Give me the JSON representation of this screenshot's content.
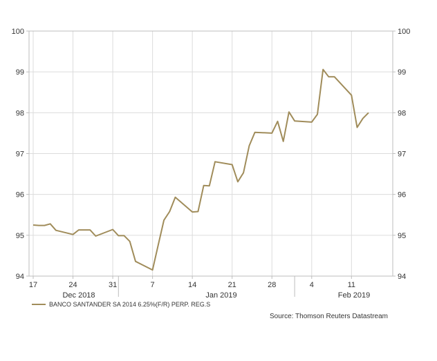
{
  "chart_data": {
    "type": "line",
    "title": "",
    "xlabel": "",
    "ylabel": "",
    "ylim": [
      94,
      100
    ],
    "y_ticks": [
      94,
      95,
      96,
      97,
      98,
      99,
      100
    ],
    "y_axis_sides": "left and right",
    "grid": true,
    "legend_placement": "bottom-left",
    "x_tick_labels": [
      "17",
      "24",
      "31",
      "7",
      "14",
      "21",
      "28",
      "4",
      "11"
    ],
    "month_labels": [
      "Dec 2018",
      "Jan 2019",
      "Feb 2019"
    ],
    "series": [
      {
        "name": "BANCO SANTANDER SA 2014 6.25%(F/R) PERP. REG.S",
        "color": "#a08c5a",
        "x": [
          "2018-12-17",
          "2018-12-18",
          "2018-12-19",
          "2018-12-20",
          "2018-12-21",
          "2018-12-24",
          "2018-12-25",
          "2018-12-26",
          "2018-12-27",
          "2018-12-28",
          "2018-12-31",
          "2019-01-01",
          "2019-01-02",
          "2019-01-03",
          "2019-01-04",
          "2019-01-07",
          "2019-01-08",
          "2019-01-09",
          "2019-01-10",
          "2019-01-11",
          "2019-01-14",
          "2019-01-15",
          "2019-01-16",
          "2019-01-17",
          "2019-01-18",
          "2019-01-21",
          "2019-01-22",
          "2019-01-23",
          "2019-01-24",
          "2019-01-25",
          "2019-01-28",
          "2019-01-29",
          "2019-01-30",
          "2019-01-31",
          "2019-02-01",
          "2019-02-04",
          "2019-02-05",
          "2019-02-06",
          "2019-02-07",
          "2019-02-08",
          "2019-02-11",
          "2019-02-12",
          "2019-02-13",
          "2019-02-14"
        ],
        "values": [
          95.25,
          95.24,
          95.24,
          95.28,
          95.12,
          95.02,
          95.13,
          95.13,
          95.13,
          94.98,
          95.14,
          94.99,
          94.99,
          94.85,
          94.36,
          94.15,
          94.76,
          95.37,
          95.58,
          95.93,
          95.57,
          95.58,
          96.22,
          96.21,
          96.8,
          96.73,
          96.31,
          96.53,
          97.19,
          97.52,
          97.5,
          97.79,
          97.3,
          98.02,
          97.8,
          97.77,
          97.96,
          99.06,
          98.88,
          98.88,
          98.43,
          97.64,
          97.86,
          98.0
        ]
      }
    ],
    "source": "Source: Thomson Reuters Datastream"
  }
}
